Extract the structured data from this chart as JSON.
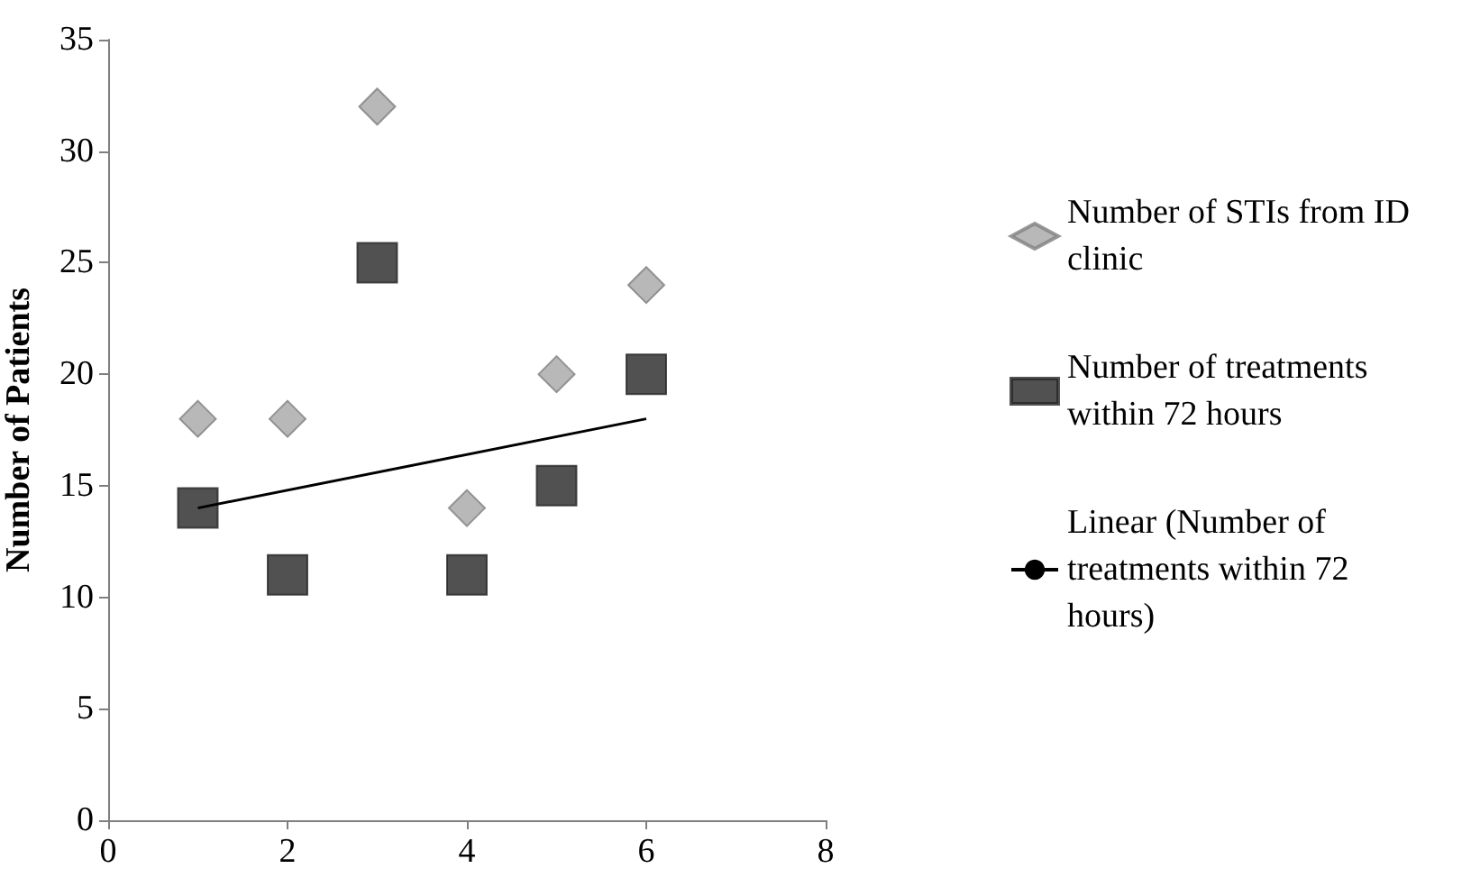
{
  "chart_data": {
    "type": "scatter",
    "ylabel": "Number of Patients",
    "x": [
      1,
      2,
      3,
      4,
      5,
      6
    ],
    "series": [
      {
        "name": "Number of STIs from ID clinic",
        "color": "#a6a6a6",
        "marker": "diamond",
        "values": [
          18,
          18,
          32,
          14,
          20,
          24
        ]
      },
      {
        "name": "Number of treatments within 72 hours",
        "color": "#262626",
        "marker": "square",
        "values": [
          14,
          11,
          25,
          11,
          15,
          20
        ]
      },
      {
        "name": "Linear (Number of treatments within 72 hours)",
        "type": "line",
        "color": "#000000",
        "marker": "none",
        "x": [
          1,
          6
        ],
        "values": [
          14,
          18
        ]
      }
    ],
    "xlim": [
      0,
      8
    ],
    "xticks": [
      0,
      2,
      4,
      6,
      8
    ],
    "ylim": [
      0,
      35
    ],
    "yticks": [
      0,
      5,
      10,
      15,
      20,
      25,
      30,
      35
    ],
    "grid": false,
    "legend": "right"
  }
}
